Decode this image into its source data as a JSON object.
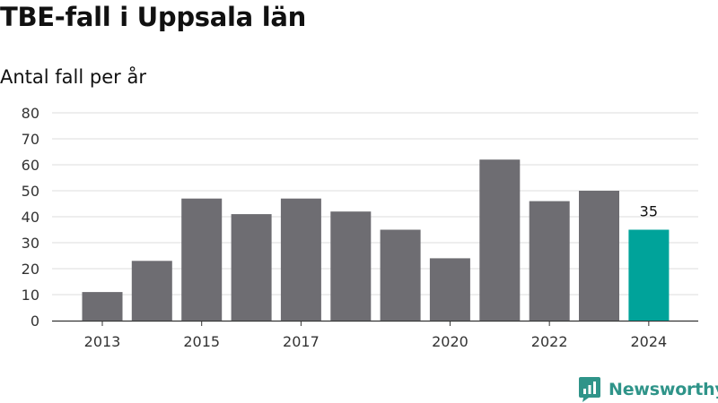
{
  "title": "TBE-fall i Uppsala län",
  "subtitle": "Antal fall per år",
  "brand": "Newsworthy",
  "colors": {
    "bar": "#6e6d72",
    "highlight": "#00a39a",
    "grid": "#dddddd",
    "axis": "#333333",
    "brand": "#2f9489"
  },
  "chart_data": {
    "type": "bar",
    "categories": [
      "2013",
      "2014",
      "2015",
      "2016",
      "2017",
      "2018",
      "2019",
      "2020",
      "2021",
      "2022",
      "2023",
      "2024"
    ],
    "values": [
      11,
      23,
      47,
      41,
      47,
      42,
      35,
      24,
      62,
      46,
      50,
      35
    ],
    "x_tick_labels": [
      "2013",
      "",
      "2015",
      "",
      "2017",
      "",
      "",
      "2020",
      "",
      "2022",
      "",
      "2024"
    ],
    "yticks": [
      0,
      10,
      20,
      30,
      40,
      50,
      60,
      70,
      80
    ],
    "ylim": [
      0,
      80
    ],
    "highlight_index": 11,
    "value_labels": [
      {
        "index": 11,
        "text": "35"
      }
    ],
    "grid": true
  }
}
